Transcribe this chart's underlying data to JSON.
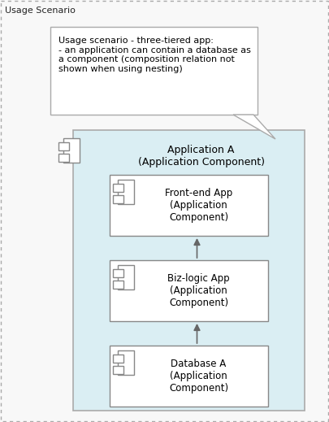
{
  "title": "Usage Scenario",
  "note_text": "Usage scenario - three-tiered app:\n- an application can contain a database as\na component (composition relation not\nshown when using nesting)",
  "outer_border_color": "#aaaaaa",
  "outer_bg": "#f8f8f8",
  "app_a_label": "Application A\n(Application Component)",
  "app_a_bg": "#daeef3",
  "app_a_border": "#aaaaaa",
  "frontend_label": "Front-end App\n(Application\nComponent)",
  "bizlogic_label": "Biz-logic App\n(Application\nComponent)",
  "database_label": "Database A\n(Application\nComponent)",
  "component_bg": "#ffffff",
  "component_border": "#888888",
  "note_bg": "#ffffff",
  "note_border": "#aaaaaa",
  "arrow_color": "#666666",
  "fig_w": 4.05,
  "fig_h": 5.19,
  "dpi": 100
}
